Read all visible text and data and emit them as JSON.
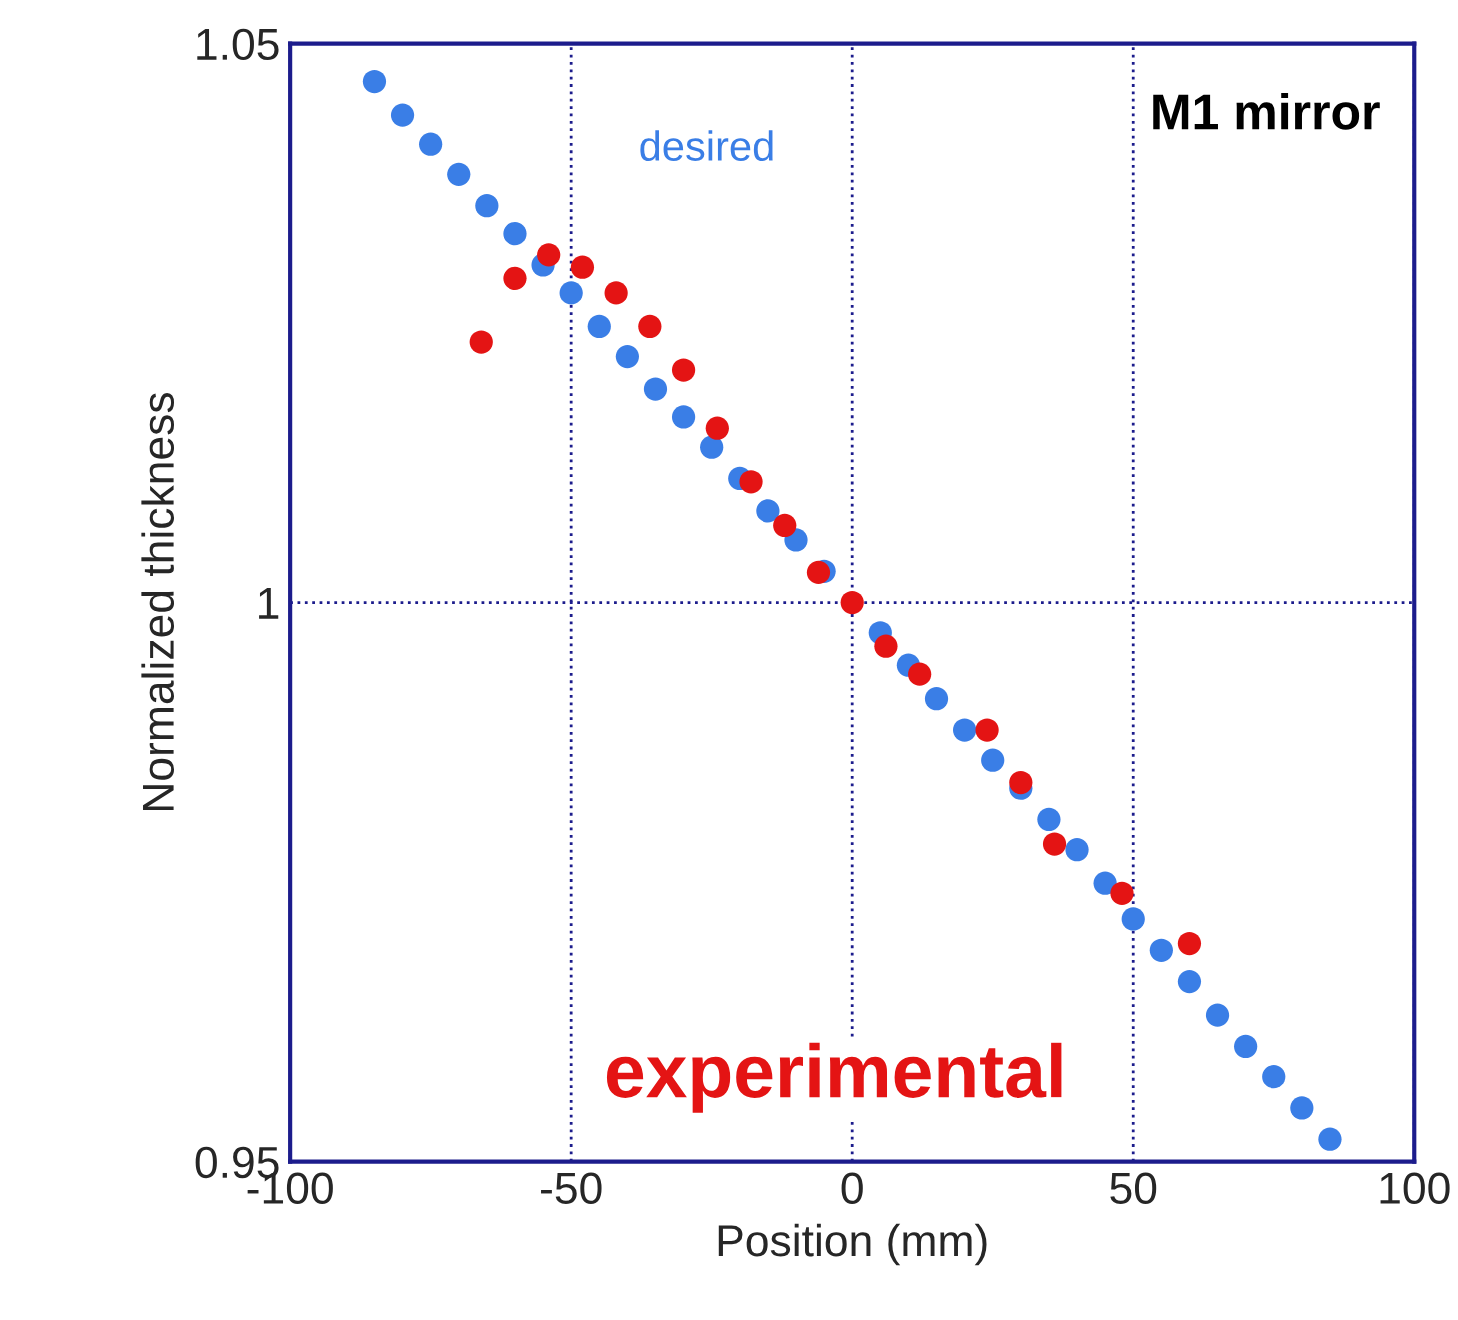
{
  "chart_data": {
    "type": "scatter",
    "xlabel": "Position (mm)",
    "ylabel": "Normalized thickness",
    "annotations": [
      "M1 mirror"
    ],
    "xlim": [
      -100,
      100
    ],
    "xticks": [
      -100,
      -50,
      0,
      50,
      100
    ],
    "ylim": [
      0.95,
      1.05
    ],
    "yticks": [
      0.95,
      1,
      1.05
    ],
    "grid": true,
    "legend": false,
    "marker": "circle",
    "series": [
      {
        "name": "desired",
        "color": "#3a7ee6",
        "x": [
          -85,
          -80,
          -75,
          -70,
          -65,
          -60,
          -55,
          -50,
          -45,
          -40,
          -35,
          -30,
          -25,
          -20,
          -15,
          -10,
          -5,
          0,
          5,
          10,
          15,
          20,
          25,
          30,
          35,
          40,
          45,
          50,
          55,
          60,
          65,
          70,
          75,
          80,
          85
        ],
        "values": [
          1.0466,
          1.0436,
          1.041,
          1.0383,
          1.0355,
          1.033,
          1.0302,
          1.0277,
          1.0247,
          1.022,
          1.0191,
          1.0166,
          1.0139,
          1.0111,
          1.0082,
          1.0056,
          1.0028,
          null,
          0.9973,
          0.9944,
          0.9914,
          0.9886,
          0.9859,
          0.9834,
          0.9806,
          0.9779,
          0.9749,
          0.9717,
          0.9689,
          0.9661,
          0.9631,
          0.9603,
          0.9576,
          0.9548,
          0.952
        ]
      },
      {
        "name": "experimental",
        "color": "#e41414",
        "x": [
          -66,
          -60,
          -54,
          -48,
          -42,
          -36,
          -30,
          -24,
          -18,
          -12,
          -6,
          0,
          6,
          12,
          24,
          30,
          36,
          48,
          60
        ],
        "values": [
          1.0233,
          1.029,
          1.0311,
          1.03,
          1.0277,
          1.0247,
          1.0208,
          1.0156,
          1.0108,
          1.0069,
          1.0027,
          1.0,
          0.9961,
          0.9936,
          0.9886,
          0.9839,
          0.9784,
          0.974,
          0.9695
        ]
      }
    ]
  }
}
